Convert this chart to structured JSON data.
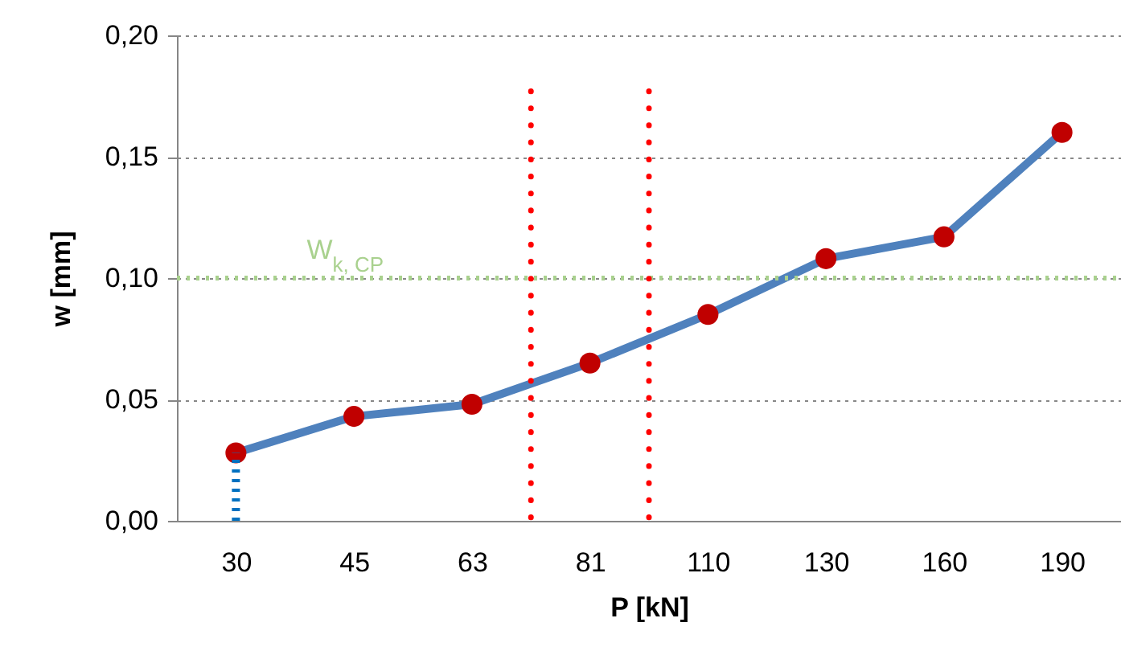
{
  "chart_data": {
    "type": "line",
    "xlabel": "P [kN]",
    "ylabel": "w [mm]",
    "categories": [
      "30",
      "45",
      "63",
      "81",
      "110",
      "130",
      "160",
      "190"
    ],
    "series": [
      {
        "color": "#4f81bd",
        "colors": [
          "#c00000",
          "#c00000",
          "#c00000",
          "#c00000",
          "#c00000",
          "#c00000",
          "#c00000",
          "#c00000"
        ],
        "values": [
          0.028,
          0.043,
          0.048,
          0.065,
          0.085,
          0.108,
          0.117,
          0.16
        ]
      },
      {
        "type": "line",
        "x": [
          "30",
          "30"
        ],
        "values": [
          0,
          0.028
        ],
        "color": "#0070c0",
        "line_style": "dotted",
        "marker": "none"
      }
    ],
    "marker": "circle",
    "ylim": [
      0,
      0.2
    ],
    "yticks": [
      {
        "value": 0,
        "label": "0,00"
      },
      {
        "value": 0.05,
        "label": "0,05"
      },
      {
        "value": 0.1,
        "label": "0,10"
      },
      {
        "value": 0.15,
        "label": "0,15"
      },
      {
        "value": 0.2,
        "label": "0,20"
      }
    ],
    "grid": "y",
    "ref_lines": [
      {
        "axis": "y",
        "value": 0.1,
        "label": "W$_{k, CP}$",
        "color": "#a9d18e",
        "line_style": "dotted"
      }
    ]
  }
}
